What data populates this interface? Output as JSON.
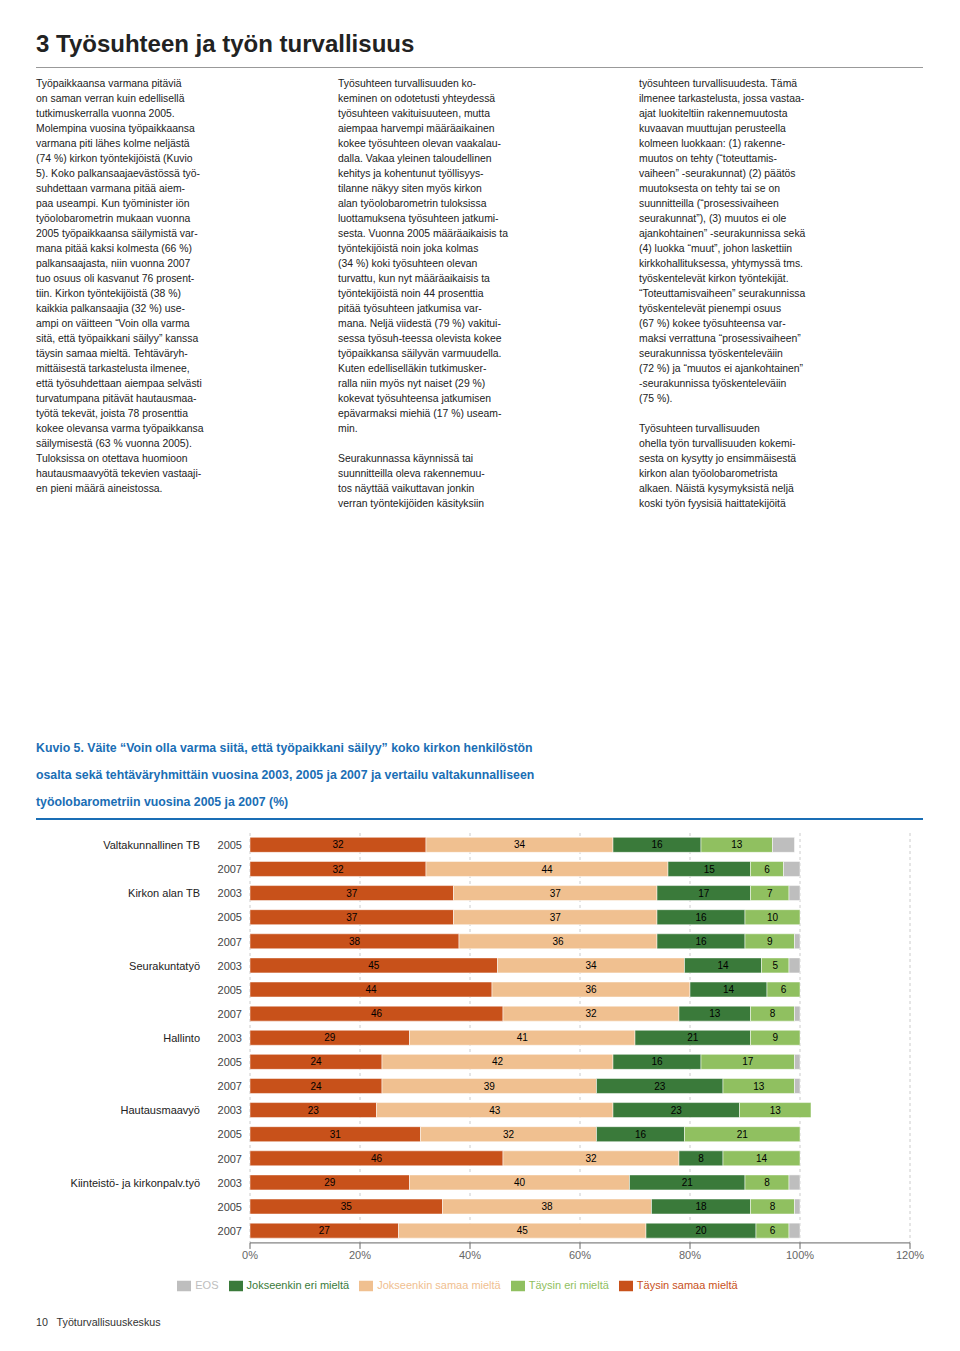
{
  "chart_data": {
    "type": "bar",
    "orientation": "horizontal",
    "stacked": true,
    "data_labels": true,
    "grid": true,
    "legend": "bottom",
    "header": "3  Työsuhteen ja työn turvallisuus",
    "body_columns": [
      "Työpaikkaansa varmana pitäviä\non saman verran kuin edellisellä\ntutkimuskerralla vuonna 2005.\nMolempina vuosina työpaikkaansa\nvarmana piti lähes kolme neljästä\n(74 %) kirkon työntekijöistä (Kuvio\n5). Koko palkansaajaevästössä työ-\nsuhdettaan varmana pitää aiem-\npaa useampi. Kun työminister iön\ntyöolobarometrin mukaan vuonna\n2005 työpaikkaansa säilymistä var-\nmana pitää kaksi kolmesta (66 %)\npalkansaajasta, niin vuonna 2007\ntuo osuus oli kasvanut 76 prosent-\ntiin. Kirkon työntekijöistä (38 %)\nkaikkia palkansaajia (32 %) use-\nampi on väitteen “Voin olla varma\nsitä, että työpaikkani säilyy” kanssa\ntäysin samaa mieltä. Tehtäväryh-\nmittäisestä tarkastelusta ilmenee,\nettä työsuhdettaan aiempaa selvästi\nturvatumpana pitävät hautausmaa-\ntyötä tekevät, joista 78 prosenttia\nkokee olevansa varma työpaikkansa\nsäilymisestä (63 % vuonna 2005).\nTuloksissa on otettava huomioon\nhautausmaavyötä tekevien vastaaji-\nen pieni määrä aineistossa.",
      "Työsuhteen turvallisuuden ko-\nkeminen on odotetusti yhteydessä\ntyösuhteen vakituisuuteen, mutta\naiempaa harvempi määräaikainen\nkokee työsuhteen olevan vaakalau-\ndalla. Vakaa yleinen taloudellinen\nkehitys ja kohentunut työllisyys-\ntilanne näkyy siten myös kirkon\nalan työolobarometrin tuloksissa\nluottamuksena työsuhteen jatkumi-\nsesta. Vuonna 2005 määräaikaisis ta\ntyöntekijöistä noin joka kolmas\n(34 %) koki työsuhteen olevan\nturvattu, kun nyt määräaikaisis ta\ntyöntekijöistä noin 44 prosenttia\npitää työsuhteen jatkumisa var-\nmana. Neljä viidestä (79 %) vakitui-\nsessa työsuh-teessa olevista kokee\ntyöpaikkansa säilyvän varmuudella.\nKuten edelliselläkin tutkimusker-\nralla niin myös nyt naiset (29 %)\nkokevat työsuhteensa jatkumisen\nepävarmaksi miehiä (17 %) useam-\nmin.\n\nSeurakunnassa käynnissä tai\nsuunnitteilla oleva rakennemuu-\ntos näyttää vaikuttavan jonkin\nverran työntekijöiden käsityksiin",
      "työsuhteen turvallisuudesta. Tämä\nilmenee tarkastelusta, jossa vastaa-\najat luokiteltiin rakennemuutosta\nkuvaavan muuttujan perusteella\nkolmeen luokkaan: (1) rakenne-\nmuutos on tehty (“toteuttamis-\nvaiheen” -seurakunnat) (2) päätös\nmuutoksesta on tehty tai se on\nsuunnitteilla (“prosessivaiheen\nseurakunnat”), (3) muutos ei ole\najankohtainen” -seurakunnissa sekä\n(4) luokka “muut”, johon laskettiin\nkirkkohallituksessa, yhtymyssä tms.\ntyöskentelevät kirkon työntekijät.\n“Toteuttamisvaiheen” seurakunnissa\ntyöskentelevät pienempi osuus\n(67 %) kokee työsuhteensa var-\nmaksi verrattuna “prosessivaiheen”\nseurakunnissa työskenteleväiin\n(72 %) ja “muutos ei ajankohtainen”\n-seurakunnissa työskenteleväiin\n(75 %).\n\nTyösuhteen turvallisuuden\nohella työn turvallisuuden kokemi-\nsesta on kysytty jo ensimmäisestä\nkirkon alan työolobarometrista\nalkaen. Näistä kysymyksistä neljä\nkoski työn fyysisiä haittatekijöitä"
    ],
    "title": "Kuvio 5. Väite “Voin olla varma siitä, että työpaikkani säilyy” koko kirkon henkilöstön\nosalta sekä tehtäväryhmittäin vuosina 2003, 2005 ja 2007 ja vertailu valtakunnalliseen\ntyöolobarometriin vuosina 2005 ja 2007 (%)",
    "title_color": "#1A6EB5",
    "footer": "10   Työturvallisuuskeskus",
    "groups": [
      {
        "name": "Valtakunnallinen TB",
        "categories": [
          "2005",
          "2007"
        ]
      },
      {
        "name": "Kirkon alan TB",
        "categories": [
          "2003",
          "2005",
          "2007"
        ]
      },
      {
        "name": "Seurakuntatyö",
        "categories": [
          "2003",
          "2005",
          "2007"
        ]
      },
      {
        "name": "Hallinto",
        "categories": [
          "2003",
          "2005",
          "2007"
        ]
      },
      {
        "name": "Hautausmaavyö",
        "categories": [
          "2003",
          "2005",
          "2007"
        ]
      },
      {
        "name": "Kiinteistö- ja kirkonpalv.työ",
        "categories": [
          "2003",
          "2005",
          "2007"
        ]
      }
    ],
    "xlim": [
      0,
      120
    ],
    "xticks": [
      {
        "value": 0,
        "label": "0%"
      },
      {
        "value": 20,
        "label": "20%"
      },
      {
        "value": 40,
        "label": "40%"
      },
      {
        "value": 60,
        "label": "60%"
      },
      {
        "value": 80,
        "label": "80%"
      },
      {
        "value": 100,
        "label": "100%"
      },
      {
        "value": 120,
        "label": "120%"
      }
    ],
    "series": [
      {
        "name": "Täysin samaa mieltä",
        "color": "#C8511A",
        "values": [
          32,
          32,
          37,
          37,
          38,
          45,
          44,
          46,
          29,
          24,
          24,
          23,
          31,
          46,
          29,
          35,
          27
        ],
        "value_labels": [
          "32",
          "32",
          "37",
          "37",
          "38",
          "45",
          "44",
          "46",
          "29",
          "24",
          "24",
          "23",
          "31",
          "46",
          "29",
          "35",
          "27"
        ]
      },
      {
        "name": "Jokseenkin samaa mieltä",
        "color": "#F0C090",
        "values": [
          34,
          44,
          37,
          37,
          36,
          34,
          36,
          32,
          41,
          42,
          39,
          43,
          32,
          32,
          40,
          38,
          45
        ],
        "value_labels": [
          "34",
          "44",
          "37",
          "37",
          "36",
          "34",
          "36",
          "32",
          "41",
          "42",
          "39",
          "43",
          "32",
          "32",
          "40",
          "38",
          "45"
        ]
      },
      {
        "name": "Jokseenkin eri mieltä",
        "color": "#3A7A3A",
        "values": [
          16,
          15,
          17,
          16,
          16,
          14,
          14,
          13,
          21,
          16,
          23,
          23,
          16,
          8,
          21,
          18,
          20
        ],
        "value_labels": [
          "16",
          "15",
          "17",
          "16",
          "16",
          "14",
          "14",
          "13",
          "21",
          "16",
          "23",
          "23",
          "16",
          "8",
          "21",
          "18",
          "20"
        ]
      },
      {
        "name": "Täysin eri mieltä",
        "color": "#90C060",
        "values": [
          13,
          6,
          7,
          10,
          9,
          5,
          6,
          8,
          9,
          17,
          13,
          13,
          21,
          14,
          8,
          8,
          6
        ],
        "value_labels": [
          "13",
          "6",
          "7",
          "10",
          "9",
          "5",
          "6",
          "8",
          "9",
          "17",
          "13",
          "13",
          "21",
          "14",
          "8",
          "8",
          "6"
        ]
      },
      {
        "name": "EOS",
        "color": "#BEBEBE",
        "values": [
          4,
          3,
          2,
          0,
          1,
          2,
          0,
          1,
          0,
          1,
          1,
          0,
          0,
          0,
          2,
          1,
          2
        ],
        "value_labels": [
          null,
          null,
          null,
          null,
          null,
          null,
          null,
          null,
          null,
          null,
          null,
          null,
          null,
          null,
          null,
          null,
          null
        ]
      }
    ]
  }
}
